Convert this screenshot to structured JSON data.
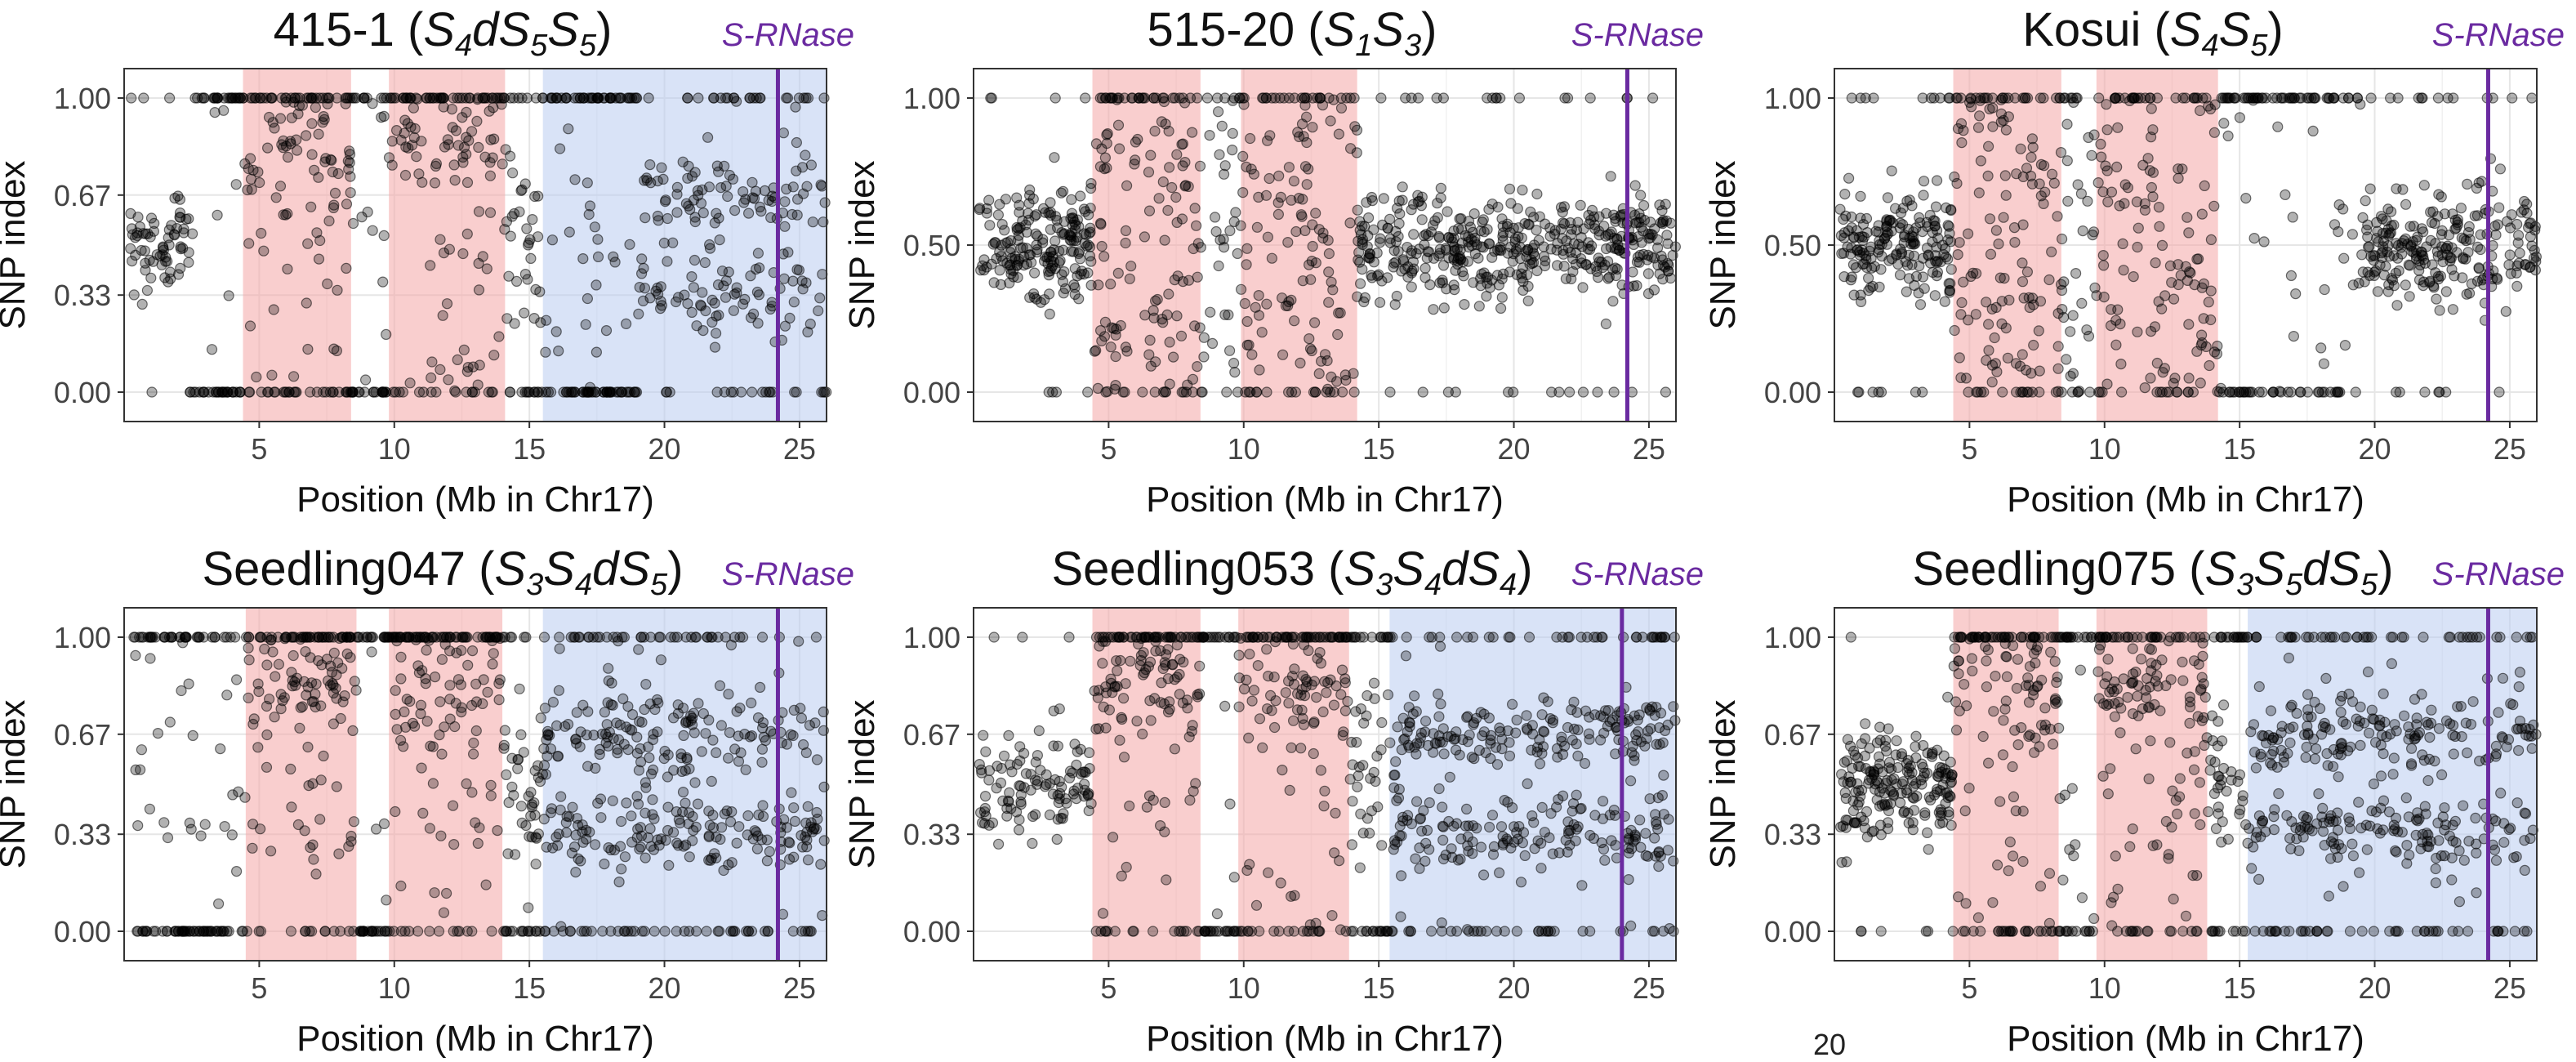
{
  "chart_data": [
    {
      "type": "scatter",
      "title_main": "415-1 (",
      "genotype": [
        [
          "S",
          "4"
        ],
        [
          "dS",
          "5"
        ],
        [
          "S",
          "5"
        ]
      ],
      "title_close": ")",
      "s_rnase_label": "S-RNase",
      "s_rnase_position": 24.2,
      "xlabel": "Position (Mb in Chr17)",
      "ylabel": "SNP index",
      "xlim": [
        0,
        26
      ],
      "ylim": [
        -0.1,
        1.1
      ],
      "x_ticks": [
        5,
        10,
        15,
        20,
        25
      ],
      "y_ticks": [
        0.0,
        0.33,
        0.67,
        1.0
      ],
      "y_tick_labels": [
        "0.00",
        "0.33",
        "0.67",
        "1.00"
      ],
      "highlight_regions": [
        {
          "x_start": 4.4,
          "x_end": 8.4,
          "color": "#f4a6a6"
        },
        {
          "x_start": 9.8,
          "x_end": 14.1,
          "color": "#f4a6a6"
        },
        {
          "x_start": 15.5,
          "x_end": 26,
          "color": "#b9ccf1"
        }
      ],
      "segments": [
        {
          "x_start": 0.2,
          "x_end": 2.4,
          "pattern": "center",
          "n": 70
        },
        {
          "x_start": 2.4,
          "x_end": 4.4,
          "pattern": "bimodal",
          "n": 60
        },
        {
          "x_start": 4.4,
          "x_end": 8.4,
          "pattern": "high",
          "n": 150
        },
        {
          "x_start": 8.4,
          "x_end": 9.8,
          "pattern": "bimodal",
          "n": 40
        },
        {
          "x_start": 9.8,
          "x_end": 14.1,
          "pattern": "high",
          "n": 150
        },
        {
          "x_start": 14.1,
          "x_end": 15.5,
          "pattern": "mixed",
          "n": 50
        },
        {
          "x_start": 15.5,
          "x_end": 19.0,
          "pattern": "sparse_bimodal",
          "n": 120
        },
        {
          "x_start": 19.0,
          "x_end": 26.0,
          "pattern": "two_bands",
          "n": 220
        }
      ]
    },
    {
      "type": "scatter",
      "title_main": "515-20 (",
      "genotype": [
        [
          "S",
          "1"
        ],
        [
          "S",
          "3"
        ]
      ],
      "title_close": ")",
      "s_rnase_label": "S-RNase",
      "s_rnase_position": 24.2,
      "xlabel": "Position (Mb in Chr17)",
      "ylabel": "SNP index",
      "xlim": [
        0,
        26
      ],
      "ylim": [
        -0.1,
        1.1
      ],
      "x_ticks": [
        5,
        10,
        15,
        20,
        25
      ],
      "y_ticks": [
        0.0,
        0.5,
        1.0
      ],
      "y_tick_labels": [
        "0.00",
        "0.50",
        "1.00"
      ],
      "highlight_regions": [
        {
          "x_start": 4.4,
          "x_end": 8.4,
          "color": "#f4a6a6"
        },
        {
          "x_start": 9.9,
          "x_end": 14.2,
          "color": "#f4a6a6"
        }
      ],
      "segments": [
        {
          "x_start": 0.2,
          "x_end": 4.4,
          "pattern": "center",
          "n": 200
        },
        {
          "x_start": 4.4,
          "x_end": 8.4,
          "pattern": "spread",
          "n": 150
        },
        {
          "x_start": 8.4,
          "x_end": 9.9,
          "pattern": "spread",
          "n": 40
        },
        {
          "x_start": 9.9,
          "x_end": 14.2,
          "pattern": "spread",
          "n": 150
        },
        {
          "x_start": 14.2,
          "x_end": 26.0,
          "pattern": "center",
          "n": 480
        }
      ]
    },
    {
      "type": "scatter",
      "title_main": "Kosui (",
      "genotype": [
        [
          "S",
          "4"
        ],
        [
          "S",
          "5"
        ]
      ],
      "title_close": ")",
      "s_rnase_label": "S-RNase",
      "s_rnase_position": 24.2,
      "xlabel": "Position (Mb in Chr17)",
      "ylabel": "SNP index",
      "xlim": [
        0,
        26
      ],
      "ylim": [
        -0.1,
        1.1
      ],
      "x_ticks": [
        5,
        10,
        15,
        20,
        25
      ],
      "y_ticks": [
        0.0,
        0.5,
        1.0
      ],
      "y_tick_labels": [
        "0.00",
        "0.50",
        "1.00"
      ],
      "highlight_regions": [
        {
          "x_start": 4.4,
          "x_end": 8.4,
          "color": "#f4a6a6"
        },
        {
          "x_start": 9.7,
          "x_end": 14.2,
          "color": "#f4a6a6"
        }
      ],
      "segments": [
        {
          "x_start": 0.2,
          "x_end": 4.4,
          "pattern": "center",
          "n": 200
        },
        {
          "x_start": 4.4,
          "x_end": 8.4,
          "pattern": "spread",
          "n": 150
        },
        {
          "x_start": 8.4,
          "x_end": 9.7,
          "pattern": "spread",
          "n": 40
        },
        {
          "x_start": 9.7,
          "x_end": 14.2,
          "pattern": "spread",
          "n": 150
        },
        {
          "x_start": 14.2,
          "x_end": 19.5,
          "pattern": "sparse_bimodal",
          "n": 120
        },
        {
          "x_start": 19.5,
          "x_end": 26.0,
          "pattern": "center",
          "n": 260
        }
      ]
    },
    {
      "type": "scatter",
      "title_main": "Seedling047 (",
      "genotype": [
        [
          "S",
          "3"
        ],
        [
          "S",
          "4"
        ],
        [
          "dS",
          "5"
        ]
      ],
      "title_close": ")",
      "s_rnase_label": "S-RNase",
      "s_rnase_position": 24.2,
      "xlabel": "Position (Mb in Chr17)",
      "ylabel": "SNP index",
      "xlim": [
        0,
        26
      ],
      "ylim": [
        -0.1,
        1.1
      ],
      "x_ticks": [
        5,
        10,
        15,
        20,
        25
      ],
      "y_ticks": [
        0.0,
        0.33,
        0.67,
        1.0
      ],
      "y_tick_labels": [
        "0.00",
        "0.33",
        "0.67",
        "1.00"
      ],
      "highlight_regions": [
        {
          "x_start": 4.5,
          "x_end": 8.6,
          "color": "#f4a6a6"
        },
        {
          "x_start": 9.8,
          "x_end": 14.0,
          "color": "#f4a6a6"
        },
        {
          "x_start": 15.5,
          "x_end": 26,
          "color": "#b9ccf1"
        }
      ],
      "segments": [
        {
          "x_start": 0.2,
          "x_end": 4.5,
          "pattern": "sparse_bimodal",
          "n": 120
        },
        {
          "x_start": 4.5,
          "x_end": 8.6,
          "pattern": "high",
          "n": 160
        },
        {
          "x_start": 8.6,
          "x_end": 9.8,
          "pattern": "bimodal",
          "n": 40
        },
        {
          "x_start": 9.8,
          "x_end": 14.0,
          "pattern": "high",
          "n": 160
        },
        {
          "x_start": 14.0,
          "x_end": 15.5,
          "pattern": "mixed",
          "n": 60
        },
        {
          "x_start": 15.5,
          "x_end": 26.0,
          "pattern": "two_bands",
          "n": 420
        }
      ]
    },
    {
      "type": "scatter",
      "title_main": "Seedling053 (",
      "genotype": [
        [
          "S",
          "3"
        ],
        [
          "S",
          "4"
        ],
        [
          "dS",
          "4"
        ]
      ],
      "title_close": ")",
      "s_rnase_label": "S-RNase",
      "s_rnase_position": 24.0,
      "xlabel": "Position (Mb in Chr17)",
      "ylabel": "SNP index",
      "xlim": [
        0,
        26
      ],
      "ylim": [
        -0.1,
        1.1
      ],
      "x_ticks": [
        5,
        10,
        15,
        20,
        25
      ],
      "y_ticks": [
        0.0,
        0.33,
        0.67,
        1.0
      ],
      "y_tick_labels": [
        "0.00",
        "0.33",
        "0.67",
        "1.00"
      ],
      "highlight_regions": [
        {
          "x_start": 4.4,
          "x_end": 8.4,
          "color": "#f4a6a6"
        },
        {
          "x_start": 9.8,
          "x_end": 13.9,
          "color": "#f4a6a6"
        },
        {
          "x_start": 15.4,
          "x_end": 26,
          "color": "#b9ccf1"
        }
      ],
      "segments": [
        {
          "x_start": 0.2,
          "x_end": 4.4,
          "pattern": "center",
          "n": 110
        },
        {
          "x_start": 4.4,
          "x_end": 8.4,
          "pattern": "high",
          "n": 160
        },
        {
          "x_start": 8.4,
          "x_end": 9.8,
          "pattern": "bimodal",
          "n": 40
        },
        {
          "x_start": 9.8,
          "x_end": 13.9,
          "pattern": "high",
          "n": 160
        },
        {
          "x_start": 13.9,
          "x_end": 15.4,
          "pattern": "mixed",
          "n": 60
        },
        {
          "x_start": 15.4,
          "x_end": 26.0,
          "pattern": "two_bands",
          "n": 420
        }
      ]
    },
    {
      "type": "scatter",
      "title_main": "Seedling075 (",
      "genotype": [
        [
          "S",
          "3"
        ],
        [
          "S",
          "5"
        ],
        [
          "dS",
          "5"
        ]
      ],
      "title_close": ")",
      "s_rnase_label": "S-RNase",
      "s_rnase_position": 24.2,
      "xlabel": "Position (Mb in Chr17)",
      "ylabel": "SNP index",
      "xlim": [
        0,
        26
      ],
      "ylim": [
        -0.1,
        1.1
      ],
      "x_ticks": [
        5,
        10,
        15,
        20,
        25
      ],
      "y_ticks": [
        0.0,
        0.33,
        0.67,
        1.0
      ],
      "y_tick_labels": [
        "0.00",
        "0.33",
        "0.67",
        "1.00"
      ],
      "highlight_regions": [
        {
          "x_start": 4.4,
          "x_end": 8.3,
          "color": "#f4a6a6"
        },
        {
          "x_start": 9.7,
          "x_end": 13.8,
          "color": "#f4a6a6"
        },
        {
          "x_start": 15.3,
          "x_end": 26,
          "color": "#b9ccf1"
        }
      ],
      "segments": [
        {
          "x_start": 0.2,
          "x_end": 4.4,
          "pattern": "center",
          "n": 200
        },
        {
          "x_start": 4.4,
          "x_end": 8.3,
          "pattern": "high",
          "n": 160
        },
        {
          "x_start": 8.3,
          "x_end": 9.7,
          "pattern": "bimodal",
          "n": 40
        },
        {
          "x_start": 9.7,
          "x_end": 13.8,
          "pattern": "high",
          "n": 160
        },
        {
          "x_start": 13.8,
          "x_end": 15.3,
          "pattern": "mixed",
          "n": 60
        },
        {
          "x_start": 15.3,
          "x_end": 26.0,
          "pattern": "two_bands",
          "n": 420
        }
      ]
    }
  ],
  "colors": {
    "point_fill": "#000000",
    "s_rnase_line": "#6a2aa0",
    "grid": "#e6e6e6",
    "panel_border": "#333333"
  },
  "page_number": "20"
}
